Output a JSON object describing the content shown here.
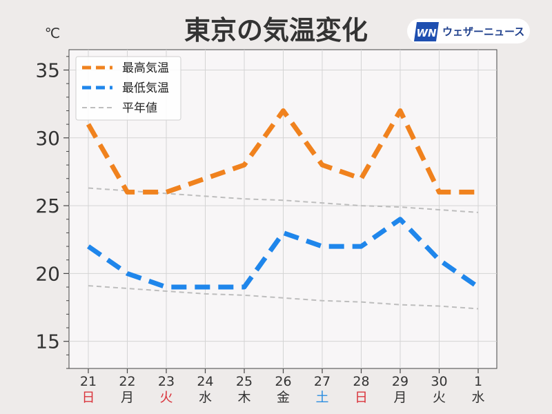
{
  "title": "東京の気温変化",
  "unit": "℃",
  "brand": {
    "logo_text": "WN",
    "name": "ウェザーニュース",
    "color": "#1e4fb0"
  },
  "colors": {
    "max": "#f0821e",
    "min": "#1f86eb",
    "normal": "#bdbdbd",
    "sunday": "#d9343c",
    "saturday": "#2c8ee0",
    "weekday": "#333333",
    "plot_bg": "#f8f6f7"
  },
  "legend": {
    "max_label": "最高気温",
    "min_label": "最低気温",
    "normal_label": "平年値"
  },
  "chart_data": {
    "type": "line",
    "categories": [
      "21",
      "22",
      "23",
      "24",
      "25",
      "26",
      "27",
      "28",
      "29",
      "30",
      "1"
    ],
    "weekdays": [
      "日",
      "月",
      "火",
      "水",
      "木",
      "金",
      "土",
      "日",
      "月",
      "火",
      "水"
    ],
    "day_types": [
      "holiday",
      "weekday",
      "holiday",
      "weekday",
      "weekday",
      "weekday",
      "saturday",
      "holiday",
      "weekday",
      "weekday",
      "weekday"
    ],
    "series": [
      {
        "name": "最高気温",
        "key": "max",
        "style": "thick-dashed",
        "values": [
          31,
          26,
          26,
          27,
          28,
          32,
          28,
          27,
          32,
          26,
          26
        ]
      },
      {
        "name": "最低気温",
        "key": "min",
        "style": "thick-dashed",
        "values": [
          22,
          20,
          19,
          19,
          19,
          23,
          22,
          22,
          24,
          21,
          19
        ]
      },
      {
        "name": "平年値",
        "key": "normal",
        "style": "thin-dashed",
        "values": [
          26.3,
          26.1,
          25.9,
          25.7,
          25.5,
          25.4,
          25.2,
          25.0,
          24.9,
          24.7,
          24.5
        ]
      },
      {
        "name": "平年値",
        "key": "normal",
        "style": "thin-dashed",
        "values": [
          19.1,
          18.9,
          18.7,
          18.5,
          18.4,
          18.2,
          18.0,
          17.9,
          17.7,
          17.6,
          17.4
        ]
      }
    ],
    "ylim": [
      13,
      36.5
    ],
    "yticks": [
      15,
      20,
      25,
      30,
      35
    ],
    "grid": true,
    "legend_position": "top-left"
  }
}
